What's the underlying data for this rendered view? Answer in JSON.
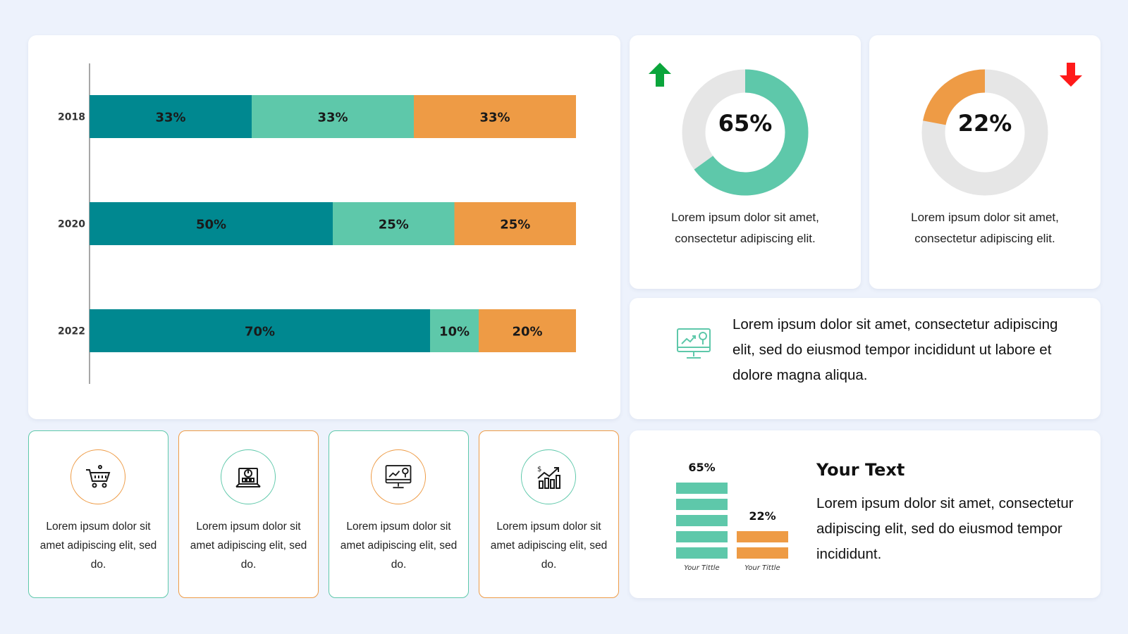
{
  "colors": {
    "teal_dark": "#008890",
    "teal_light": "#5ec8aa",
    "orange": "#ee9b45",
    "ring_gray": "#e6e6e6",
    "up_arrow": "#0aa53b",
    "down_arrow": "#ff1a1a"
  },
  "chart_data": [
    {
      "type": "bar",
      "orientation": "horizontal",
      "stacked": true,
      "categories": [
        "2018",
        "2020",
        "2022"
      ],
      "series": [
        {
          "values": [
            33,
            50,
            70
          ],
          "labels": [
            "33%",
            "50%",
            "70%"
          ]
        },
        {
          "values": [
            33,
            25,
            10
          ],
          "labels": [
            "33%",
            "25%",
            "10%"
          ]
        },
        {
          "values": [
            33,
            25,
            20
          ],
          "labels": [
            "33%",
            "25%",
            "20%"
          ]
        }
      ],
      "xlim": [
        0,
        100
      ],
      "grid": false
    },
    {
      "type": "pie",
      "donut": true,
      "values": [
        65,
        35
      ],
      "center_label": "65%",
      "trend": "up"
    },
    {
      "type": "pie",
      "donut": true,
      "values": [
        22,
        78
      ],
      "center_label": "22%",
      "trend": "down"
    },
    {
      "type": "bar",
      "categories": [
        "Your Tittle",
        "Your Tittle"
      ],
      "values": [
        65,
        22
      ],
      "value_labels": [
        "65%",
        "22%"
      ]
    }
  ],
  "donut_cards": [
    {
      "text": "Lorem ipsum dolor sit amet, consectetur adipiscing elit."
    },
    {
      "text": "Lorem ipsum dolor sit amet, consectetur adipiscing elit."
    }
  ],
  "info_card": {
    "icon": "monitor-chart-icon",
    "text": "Lorem ipsum dolor sit amet, consectetur adipiscing elit, sed do eiusmod tempor incididunt ut labore et dolore magna aliqua."
  },
  "features": [
    {
      "icon": "shopping-cart-icon",
      "text": "Lorem ipsum dolor sit amet adipiscing elit, sed do."
    },
    {
      "icon": "laptop-chart-icon",
      "text": "Lorem ipsum dolor sit amet adipiscing elit, sed do."
    },
    {
      "icon": "monitor-chart-icon",
      "text": "Lorem ipsum dolor sit amet adipiscing elit, sed do."
    },
    {
      "icon": "growth-chart-icon",
      "text": "Lorem ipsum dolor sit amet adipiscing elit, sed do."
    }
  ],
  "text_card": {
    "title": "Your Text",
    "body": "Lorem ipsum dolor sit amet, consectetur adipiscing elit, sed do eiusmod tempor incididunt."
  }
}
